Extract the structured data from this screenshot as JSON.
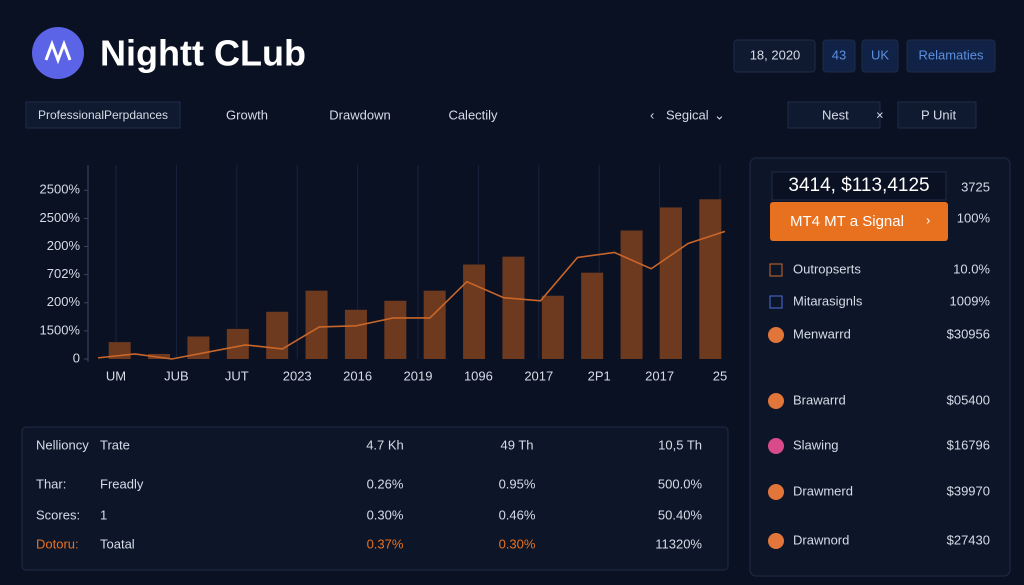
{
  "header": {
    "title": "Nightt CLub",
    "buttons": [
      "18, 2020",
      "43",
      "UK",
      "Relamaties"
    ]
  },
  "tabs": {
    "items": [
      "ProfessionalPerpdances",
      "Growth",
      "Drawdown",
      "Calectily"
    ],
    "dropdown": "Segical",
    "actions": [
      "Nest",
      "P Unit"
    ]
  },
  "chart": {
    "type": "bar",
    "yticks": [
      {
        "value": 0,
        "label": "0"
      },
      {
        "value": 1,
        "label": "1500%"
      },
      {
        "value": 2,
        "label": "200%"
      },
      {
        "value": 3,
        "label": "702%"
      },
      {
        "value": 4,
        "label": "200%"
      },
      {
        "value": 5,
        "label": "2500%"
      },
      {
        "value": 6,
        "label": "2500%"
      }
    ],
    "ylim": [
      0,
      6.9
    ],
    "categories": [
      "UM",
      "JUB",
      "JUT",
      "2023",
      "2016",
      "2019",
      "1096",
      "2017",
      "2P1",
      "2017",
      "25"
    ],
    "bars": [
      0.6,
      0.18,
      0.8,
      1.07,
      1.68,
      2.43,
      1.75,
      2.07,
      2.43,
      3.36,
      3.64,
      2.25,
      3.07,
      4.57,
      5.39,
      5.68
    ],
    "line": [
      0.04,
      0.18,
      0,
      0.25,
      0.5,
      0.36,
      1.14,
      1.18,
      1.46,
      1.46,
      2.75,
      2.18,
      2.07,
      3.61,
      3.79,
      3.21,
      4.11,
      4.54
    ],
    "bar_color": "#6e3a1f",
    "line_color": "#c8662a",
    "grid": true
  },
  "panel": {
    "headline": "3414, $113,4125",
    "headline_value": "3725",
    "button": "MT4 MT a Signal",
    "button_value": "100%",
    "rows": [
      {
        "label": "Outropserts",
        "value": "10.0%"
      },
      {
        "label": "Mitarasignls",
        "value": "1009%"
      },
      {
        "label": "Menwarrd",
        "value": "$30956"
      },
      {
        "label": "Brawarrd",
        "value": "$05400"
      },
      {
        "label": "Slawing",
        "value": "$16796"
      },
      {
        "label": "Drawmerd",
        "value": "$39970"
      },
      {
        "label": "Drawnord",
        "value": "$27430"
      }
    ]
  },
  "table": {
    "rows": [
      [
        "Nellioncy",
        "Trate",
        "4.7 Kh",
        "49 Th",
        "10,5 Th"
      ],
      [
        "Thar:",
        "Freadly",
        "0.26%",
        "0.95%",
        "500.0%"
      ],
      [
        "Scores:",
        "1",
        "0.30%",
        "0.46%",
        "50.40%"
      ],
      [
        "Dotoru:",
        "Toatal",
        "0.37%",
        "0.30%",
        "11320%"
      ]
    ]
  }
}
